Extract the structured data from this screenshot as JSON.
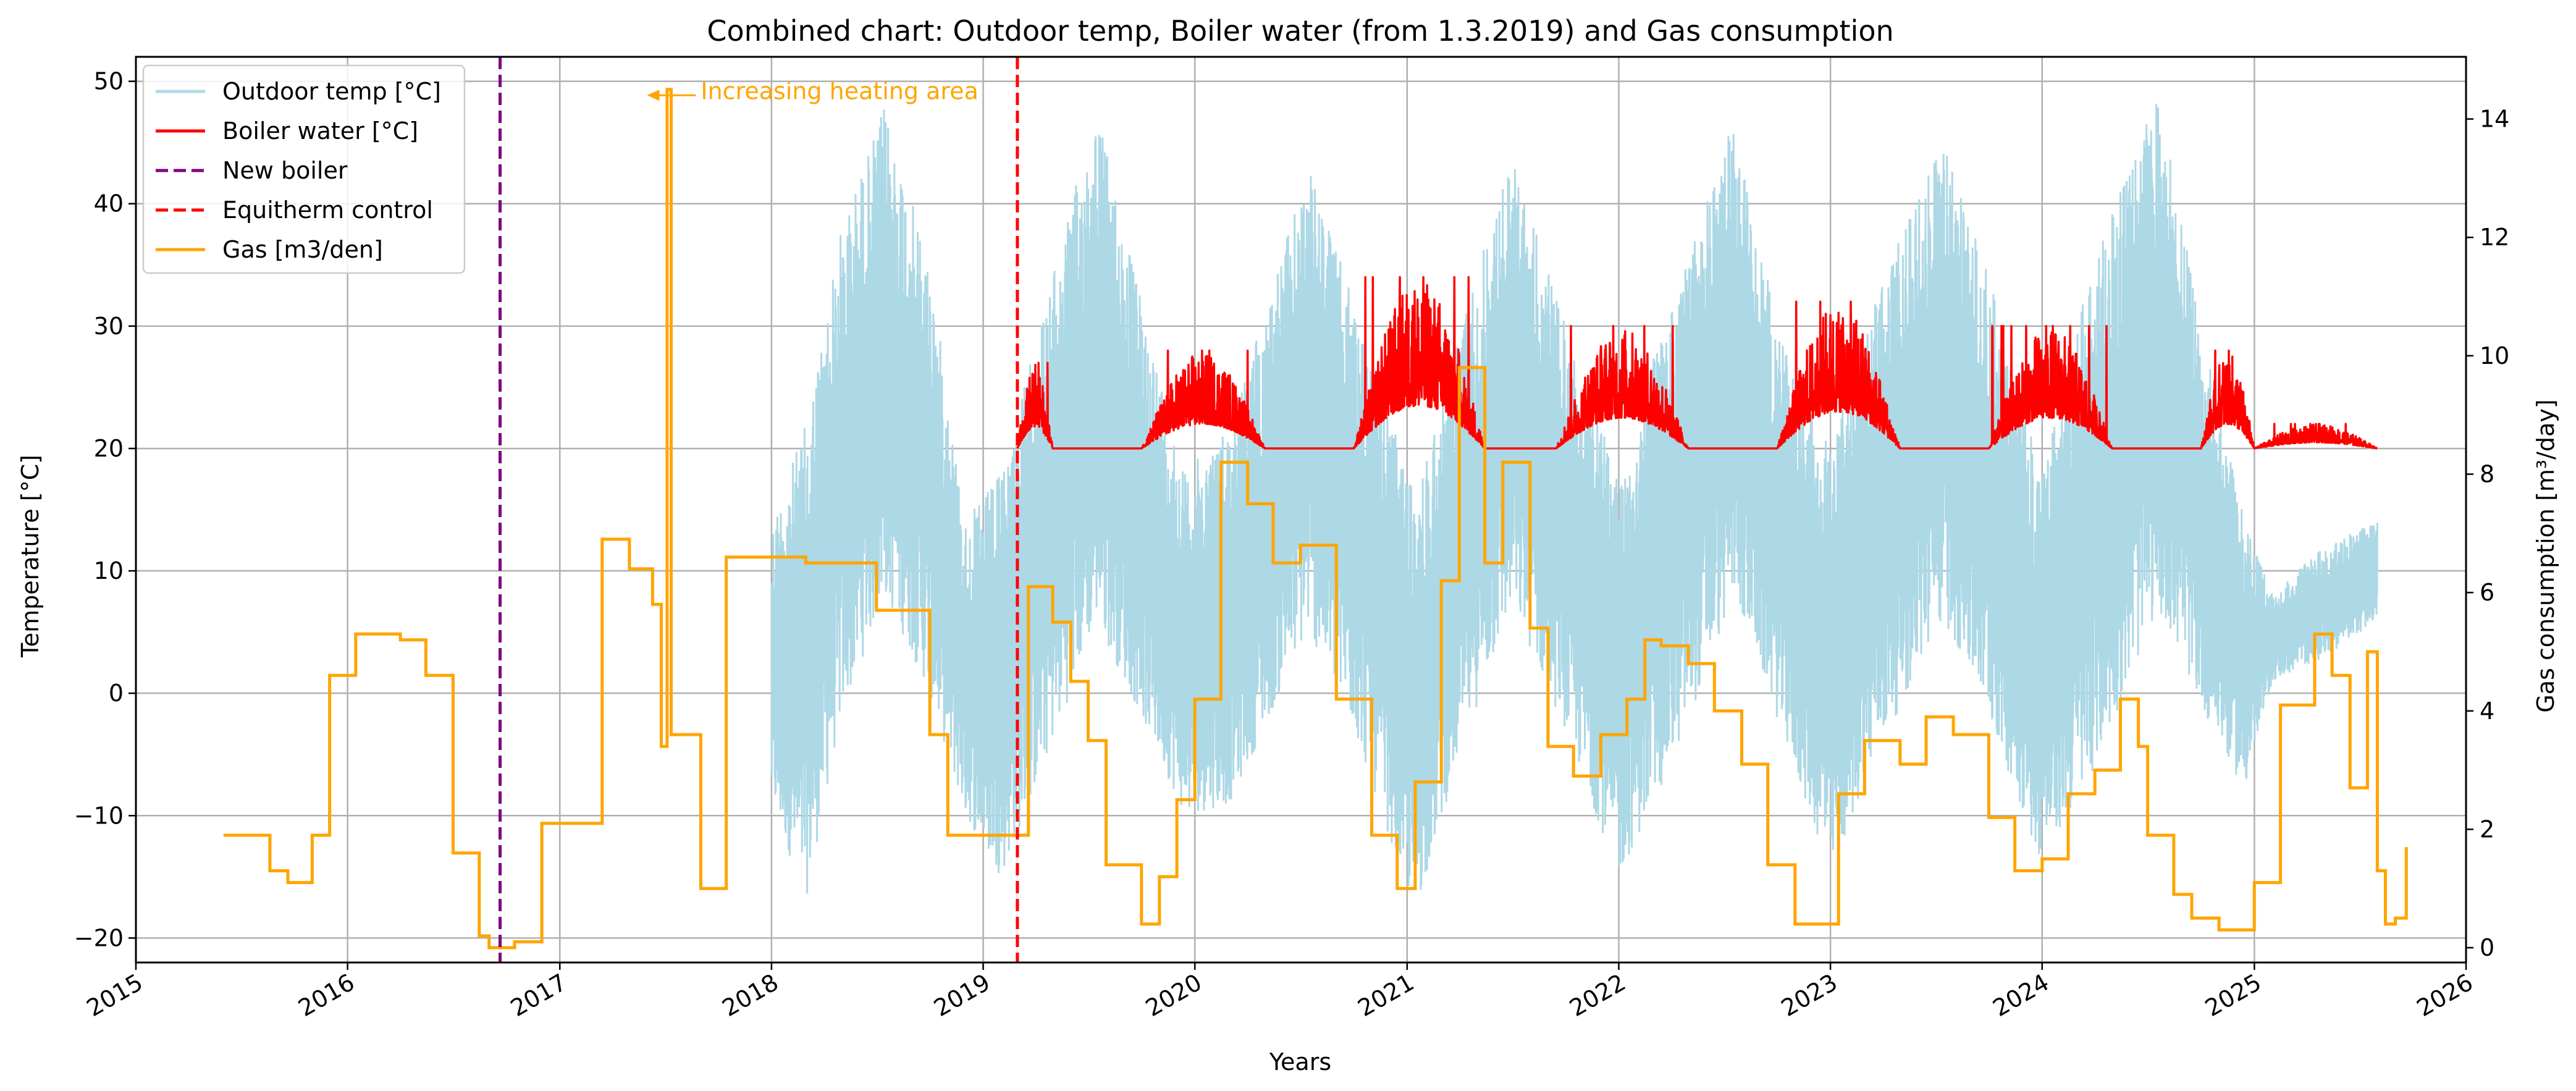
{
  "chart_data": {
    "type": "line",
    "title": "Combined chart: Outdoor temp, Boiler water (from 1.3.2019) and Gas consumption",
    "xlabel": "Years",
    "ylabel": "Temperature [°C]",
    "y2label": "Gas consumption [m³/day]",
    "xlim": [
      "2015-01-01",
      "2026-01-01"
    ],
    "ylim": [
      -22,
      52
    ],
    "y2lim": [
      -0.25,
      15.05
    ],
    "x_ticks": [
      "2015",
      "2016",
      "2017",
      "2018",
      "2019",
      "2020",
      "2021",
      "2022",
      "2023",
      "2024",
      "2025",
      "2026"
    ],
    "y_ticks": [
      -20,
      -10,
      0,
      10,
      20,
      30,
      40,
      50
    ],
    "y2_ticks": [
      0,
      2,
      4,
      6,
      8,
      10,
      12,
      14
    ],
    "grid": true,
    "legend_position": "top-left",
    "colors": {
      "outdoor": "#add8e6",
      "boiler": "#ff0000",
      "new_boiler": "#800080",
      "equitherm": "#ff0000",
      "gas": "#ffa500"
    },
    "legend": [
      {
        "key": "outdoor",
        "label": "Outdoor temp [°C]",
        "style": "solid"
      },
      {
        "key": "boiler",
        "label": "Boiler water [°C]",
        "style": "solid"
      },
      {
        "key": "new_boiler",
        "label": "New boiler",
        "style": "dashed"
      },
      {
        "key": "equitherm",
        "label": "Equitherm control",
        "style": "dashed"
      },
      {
        "key": "gas",
        "label": "Gas [m3/den]",
        "style": "solid"
      }
    ],
    "vlines": [
      {
        "key": "new_boiler",
        "x": "2016-09-20"
      },
      {
        "key": "equitherm",
        "x": "2019-03-01"
      }
    ],
    "annotation": {
      "text": "Increasing heating area",
      "x": "2017-05-25",
      "y2": 14.4,
      "text_x": "2017-09-01"
    },
    "outdoor_envelope": {
      "start": "2018-01-01",
      "end": "2025-08-01",
      "points": [
        {
          "x": "2018-01-01",
          "high": 14,
          "low": -9
        },
        {
          "x": "2018-03-01",
          "high": 22,
          "low": -17
        },
        {
          "x": "2018-05-01",
          "high": 38,
          "low": -2
        },
        {
          "x": "2018-07-15",
          "high": 48,
          "low": 8
        },
        {
          "x": "2018-10-01",
          "high": 35,
          "low": 0
        },
        {
          "x": "2018-12-01",
          "high": 14,
          "low": -10
        },
        {
          "x": "2019-02-01",
          "high": 18,
          "low": -15
        },
        {
          "x": "2019-05-01",
          "high": 34,
          "low": -4
        },
        {
          "x": "2019-07-15",
          "high": 48,
          "low": 6
        },
        {
          "x": "2019-10-01",
          "high": 32,
          "low": -2
        },
        {
          "x": "2019-12-15",
          "high": 18,
          "low": -10
        },
        {
          "x": "2020-03-01",
          "high": 22,
          "low": -9
        },
        {
          "x": "2020-07-15",
          "high": 43,
          "low": 5
        },
        {
          "x": "2020-10-01",
          "high": 32,
          "low": -3
        },
        {
          "x": "2021-01-15",
          "high": 16,
          "low": -18
        },
        {
          "x": "2021-04-01",
          "high": 30,
          "low": -5
        },
        {
          "x": "2021-07-01",
          "high": 44,
          "low": 7
        },
        {
          "x": "2021-10-01",
          "high": 30,
          "low": -3
        },
        {
          "x": "2022-01-01",
          "high": 18,
          "low": -15
        },
        {
          "x": "2022-04-01",
          "high": 32,
          "low": -6
        },
        {
          "x": "2022-07-20",
          "high": 47,
          "low": 8
        },
        {
          "x": "2022-10-01",
          "high": 30,
          "low": -2
        },
        {
          "x": "2023-01-01",
          "high": 20,
          "low": -15
        },
        {
          "x": "2023-04-01",
          "high": 34,
          "low": -4
        },
        {
          "x": "2023-07-15",
          "high": 45,
          "low": 6
        },
        {
          "x": "2023-10-01",
          "high": 34,
          "low": -2
        },
        {
          "x": "2024-01-01",
          "high": 18,
          "low": -14
        },
        {
          "x": "2024-04-01",
          "high": 36,
          "low": -6
        },
        {
          "x": "2024-07-20",
          "high": 49,
          "low": 7
        },
        {
          "x": "2024-10-01",
          "high": 30,
          "low": -1
        },
        {
          "x": "2024-12-15",
          "high": 14,
          "low": -8
        },
        {
          "x": "2025-02-01",
          "high": 8,
          "low": 1
        },
        {
          "x": "2025-05-01",
          "high": 12,
          "low": 3
        },
        {
          "x": "2025-08-01",
          "high": 14,
          "low": 6
        }
      ]
    },
    "boiler_base": 20,
    "boiler_peaks": [
      {
        "start": "2019-03-01",
        "end": "2019-05-01",
        "peak": 27
      },
      {
        "start": "2019-10-01",
        "end": "2020-05-01",
        "peak": 28
      },
      {
        "start": "2020-10-01",
        "end": "2021-05-15",
        "peak": 34
      },
      {
        "start": "2021-09-15",
        "end": "2022-05-01",
        "peak": 30
      },
      {
        "start": "2022-10-01",
        "end": "2023-05-01",
        "peak": 32
      },
      {
        "start": "2023-10-01",
        "end": "2024-05-01",
        "peak": 30
      },
      {
        "start": "2024-10-01",
        "end": "2025-01-01",
        "peak": 28
      },
      {
        "start": "2025-01-01",
        "end": "2025-08-01",
        "peak": 22
      }
    ],
    "gas": [
      [
        "2015-06-01",
        1.9
      ],
      [
        "2015-08-20",
        1.3
      ],
      [
        "2015-09-20",
        1.1
      ],
      [
        "2015-11-01",
        1.9
      ],
      [
        "2015-12-01",
        4.6
      ],
      [
        "2016-01-15",
        5.3
      ],
      [
        "2016-04-01",
        5.2
      ],
      [
        "2016-05-15",
        4.6
      ],
      [
        "2016-07-01",
        1.6
      ],
      [
        "2016-08-15",
        0.2
      ],
      [
        "2016-09-01",
        0.0
      ],
      [
        "2016-10-15",
        0.1
      ],
      [
        "2016-12-01",
        2.1
      ],
      [
        "2017-03-15",
        6.9
      ],
      [
        "2017-05-01",
        6.4
      ],
      [
        "2017-06-10",
        5.8
      ],
      [
        "2017-06-25",
        3.4
      ],
      [
        "2017-07-05",
        14.5
      ],
      [
        "2017-07-12",
        3.6
      ],
      [
        "2017-09-01",
        1.0
      ],
      [
        "2017-10-15",
        6.6
      ],
      [
        "2018-03-01",
        6.5
      ],
      [
        "2018-07-01",
        5.7
      ],
      [
        "2018-10-01",
        3.6
      ],
      [
        "2018-11-01",
        1.9
      ],
      [
        "2019-01-01",
        1.9
      ],
      [
        "2019-03-20",
        6.1
      ],
      [
        "2019-05-01",
        5.5
      ],
      [
        "2019-06-01",
        4.5
      ],
      [
        "2019-07-01",
        3.5
      ],
      [
        "2019-08-01",
        1.4
      ],
      [
        "2019-10-01",
        0.4
      ],
      [
        "2019-11-01",
        1.2
      ],
      [
        "2019-12-01",
        2.5
      ],
      [
        "2020-01-01",
        4.2
      ],
      [
        "2020-02-15",
        8.2
      ],
      [
        "2020-04-01",
        7.5
      ],
      [
        "2020-05-15",
        6.5
      ],
      [
        "2020-07-01",
        6.8
      ],
      [
        "2020-09-01",
        4.2
      ],
      [
        "2020-11-01",
        1.9
      ],
      [
        "2020-12-15",
        1.0
      ],
      [
        "2021-01-15",
        2.8
      ],
      [
        "2021-03-01",
        6.2
      ],
      [
        "2021-04-01",
        9.8
      ],
      [
        "2021-05-15",
        6.5
      ],
      [
        "2021-06-15",
        8.2
      ],
      [
        "2021-08-01",
        5.4
      ],
      [
        "2021-09-01",
        3.4
      ],
      [
        "2021-10-15",
        2.9
      ],
      [
        "2021-12-01",
        3.6
      ],
      [
        "2022-01-15",
        4.2
      ],
      [
        "2022-02-15",
        5.2
      ],
      [
        "2022-03-15",
        5.1
      ],
      [
        "2022-05-01",
        4.8
      ],
      [
        "2022-06-15",
        4.0
      ],
      [
        "2022-08-01",
        3.1
      ],
      [
        "2022-09-15",
        1.4
      ],
      [
        "2022-11-01",
        0.4
      ],
      [
        "2022-12-15",
        0.4
      ],
      [
        "2023-01-15",
        2.6
      ],
      [
        "2023-03-01",
        3.5
      ],
      [
        "2023-05-01",
        3.1
      ],
      [
        "2023-06-15",
        3.9
      ],
      [
        "2023-08-01",
        3.6
      ],
      [
        "2023-10-01",
        2.2
      ],
      [
        "2023-11-15",
        1.3
      ],
      [
        "2024-01-01",
        1.5
      ],
      [
        "2024-02-15",
        2.6
      ],
      [
        "2024-04-01",
        3.0
      ],
      [
        "2024-05-15",
        4.2
      ],
      [
        "2024-06-15",
        3.4
      ],
      [
        "2024-07-01",
        1.9
      ],
      [
        "2024-08-15",
        0.9
      ],
      [
        "2024-09-15",
        0.5
      ],
      [
        "2024-11-01",
        0.3
      ],
      [
        "2025-01-01",
        1.1
      ],
      [
        "2025-02-15",
        4.1
      ],
      [
        "2025-04-15",
        5.3
      ],
      [
        "2025-05-15",
        4.6
      ],
      [
        "2025-06-15",
        2.7
      ],
      [
        "2025-07-15",
        5.0
      ],
      [
        "2025-08-01",
        1.3
      ],
      [
        "2025-08-15",
        0.4
      ],
      [
        "2025-09-01",
        0.5
      ],
      [
        "2025-09-20",
        1.7
      ]
    ]
  }
}
